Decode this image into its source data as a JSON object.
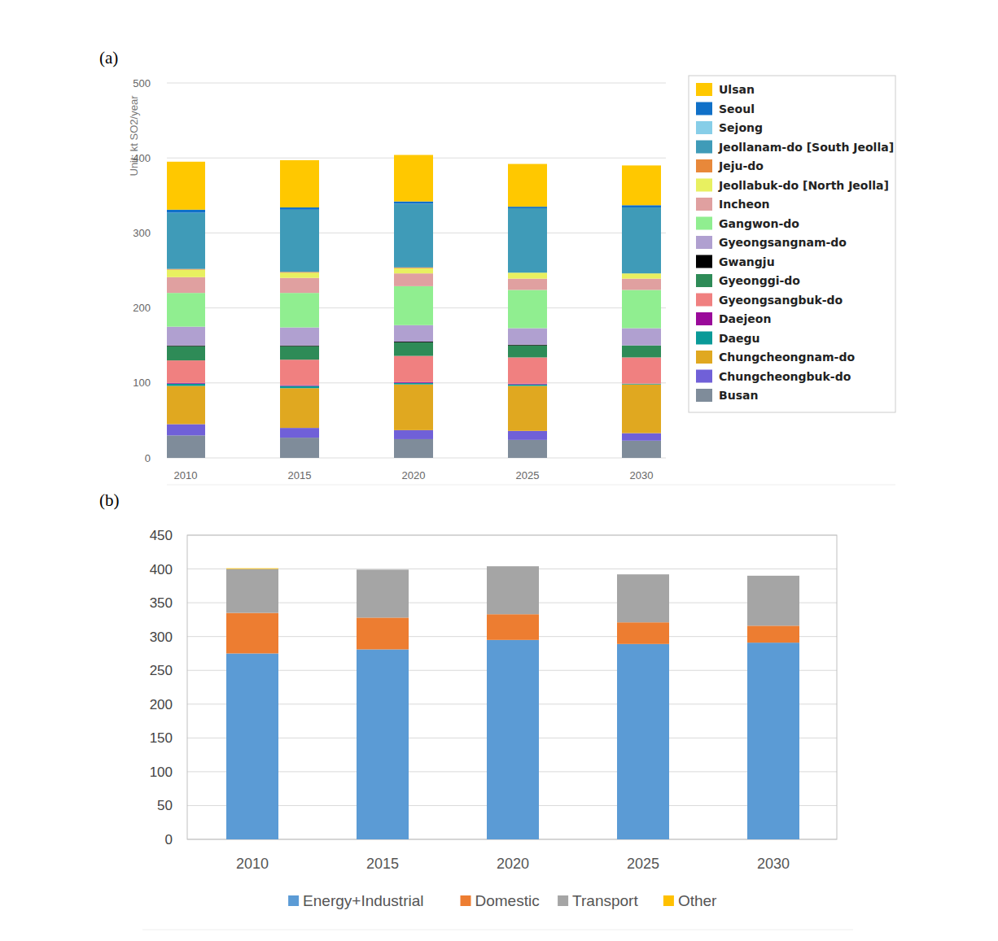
{
  "chart_data": [
    {
      "type": "bar",
      "title": "(a)",
      "y_label": "Unit: kt SO2/year",
      "stacked": true,
      "grid": true,
      "legend": "right",
      "categories": [
        "2010",
        "2015",
        "2020",
        "2025",
        "2030"
      ],
      "ylim": [
        0,
        500
      ],
      "yticks": [
        0,
        100,
        200,
        300,
        400,
        500
      ],
      "series": [
        {
          "name": "Busan",
          "color": "#7f8c9a",
          "values": [
            30,
            27,
            25,
            24,
            23
          ]
        },
        {
          "name": "Chungcheongbuk-do",
          "color": "#7060d8",
          "values": [
            15,
            13,
            12,
            12,
            10
          ]
        },
        {
          "name": "Chungcheongnam-do",
          "color": "#e0a820",
          "values": [
            51,
            53,
            61,
            60,
            65
          ]
        },
        {
          "name": "Daegu",
          "color": "#0a9a98",
          "values": [
            3,
            3,
            2,
            2,
            1
          ]
        },
        {
          "name": "Daejeon",
          "color": "#9a0a9a",
          "values": [
            1,
            1,
            1,
            1,
            0
          ]
        },
        {
          "name": "Gyeongsangbuk-do",
          "color": "#f08080",
          "values": [
            30,
            34,
            35,
            35,
            35
          ]
        },
        {
          "name": "Gyeonggi-do",
          "color": "#2e8b57",
          "values": [
            19,
            18,
            18,
            16,
            16
          ]
        },
        {
          "name": "Gwangju",
          "color": "#000000",
          "values": [
            1,
            1,
            1,
            1,
            0
          ]
        },
        {
          "name": "Gyeongsangnam-do",
          "color": "#b0a0d0",
          "values": [
            25,
            24,
            22,
            22,
            23
          ]
        },
        {
          "name": "Gangwon-do",
          "color": "#90ee90",
          "values": [
            45,
            46,
            52,
            51,
            51
          ]
        },
        {
          "name": "Incheon",
          "color": "#e0a0a0",
          "values": [
            21,
            20,
            17,
            15,
            15
          ]
        },
        {
          "name": "Jeollabuk-do [North Jeolla]",
          "color": "#e8f060",
          "values": [
            10,
            7,
            7,
            8,
            7
          ]
        },
        {
          "name": "Jeju-do",
          "color": "#e8883a",
          "values": [
            1,
            1,
            1,
            0,
            0
          ]
        },
        {
          "name": "Jeollanam-do [South Jeolla]",
          "color": "#3f9bb8",
          "values": [
            75,
            83,
            85,
            86,
            88
          ]
        },
        {
          "name": "Sejong",
          "color": "#87cee8",
          "values": [
            0,
            0,
            0,
            0,
            0
          ]
        },
        {
          "name": "Seoul",
          "color": "#1070c8",
          "values": [
            4,
            3,
            3,
            2,
            3
          ]
        },
        {
          "name": "Ulsan",
          "color": "#ffc800",
          "values": [
            64,
            63,
            62,
            57,
            53
          ]
        }
      ]
    },
    {
      "type": "bar",
      "title": "(b)",
      "stacked": true,
      "grid": true,
      "legend": "bottom",
      "categories": [
        "2010",
        "2015",
        "2020",
        "2025",
        "2030"
      ],
      "ylim": [
        0,
        450
      ],
      "yticks": [
        0,
        50,
        100,
        150,
        200,
        250,
        300,
        350,
        400,
        450
      ],
      "series": [
        {
          "name": "Energy+Industrial",
          "color": "#5b9bd5",
          "values": [
            275,
            281,
            295,
            289,
            291
          ]
        },
        {
          "name": "Domestic",
          "color": "#ed7d31",
          "values": [
            60,
            47,
            38,
            32,
            25
          ]
        },
        {
          "name": "Transport",
          "color": "#a5a5a5",
          "values": [
            65,
            71,
            71,
            71,
            74
          ]
        },
        {
          "name": "Other",
          "color": "#ffc000",
          "values": [
            1,
            0,
            0,
            0,
            0
          ]
        }
      ]
    }
  ]
}
